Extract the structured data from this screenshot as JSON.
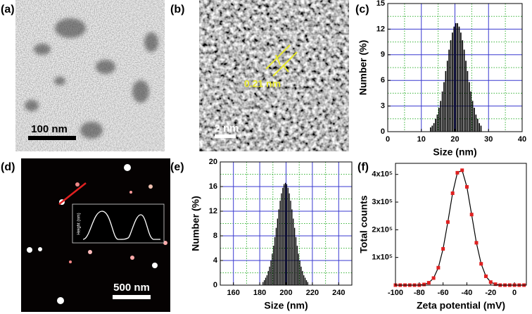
{
  "panels": [
    {
      "label": "(a)",
      "scale_bar": "100 nm"
    },
    {
      "label": "(b)",
      "scale_bar": "2 nm",
      "annotation": "0.21 nm"
    },
    {
      "label": "(c)"
    },
    {
      "label": "(d)",
      "scale_bar": "500 nm",
      "inset_ylabel": "Height (nm)"
    },
    {
      "label": "(e)"
    },
    {
      "label": "(f)"
    }
  ],
  "chart_data": [
    {
      "type": "histogram",
      "xlabel": "Size (nm)",
      "ylabel": "Number (%)",
      "color": "#000000",
      "bins": [
        12.5,
        13,
        13.5,
        14,
        14.5,
        15,
        15.5,
        16,
        16.5,
        17,
        17.5,
        18,
        18.5,
        19,
        19.5,
        20,
        20.5,
        21,
        21.5,
        22,
        22.5,
        23,
        23.5,
        24,
        24.5,
        25,
        25.5,
        26,
        26.5,
        27,
        27.5,
        28
      ],
      "values": [
        0.5,
        0.7,
        1.0,
        1.5,
        2.0,
        2.8,
        3.6,
        4.7,
        5.8,
        7.1,
        8.3,
        9.6,
        10.7,
        11.6,
        12.3,
        12.7,
        12.7,
        12.3,
        11.6,
        10.7,
        9.6,
        8.3,
        7.1,
        5.8,
        4.7,
        3.6,
        2.8,
        2.0,
        1.5,
        1.0,
        0.7
      ],
      "xlim": [
        0,
        40
      ],
      "ylim": [
        0,
        15
      ],
      "xticks": [
        0,
        10,
        20,
        30,
        40
      ],
      "yticks": [
        0,
        3,
        6,
        9,
        12,
        15
      ],
      "grid": true,
      "grid_color": "#3a3ad0",
      "minor_grid": true,
      "minor_grid_color": "#3cb43c"
    },
    {
      "type": "histogram",
      "xlabel": "Size (nm)",
      "ylabel": "Number (%)",
      "color": "#000000",
      "bins": [
        182,
        183,
        184,
        185,
        186,
        187,
        188,
        189,
        190,
        191,
        192,
        193,
        194,
        195,
        196,
        197,
        198,
        199,
        200,
        201,
        202,
        203,
        204,
        205,
        206,
        207,
        208,
        209,
        210,
        211,
        212,
        213,
        214,
        215,
        216,
        217
      ],
      "values": [
        0.5,
        0.8,
        1.2,
        1.6,
        2.3,
        3.0,
        4.0,
        5.1,
        6.4,
        7.8,
        9.3,
        10.8,
        12.3,
        13.7,
        14.9,
        15.8,
        16.4,
        16.6,
        16.4,
        15.8,
        14.9,
        13.7,
        12.3,
        10.8,
        9.3,
        7.8,
        6.4,
        5.1,
        4.0,
        3.0,
        2.3,
        1.6,
        1.2,
        0.8,
        0.5
      ],
      "xlim": [
        150,
        250
      ],
      "ylim": [
        0,
        20
      ],
      "xticks": [
        160,
        180,
        200,
        220,
        240
      ],
      "yticks": [
        0,
        4,
        8,
        12,
        16,
        20
      ],
      "grid": true,
      "grid_color": "#3a3ad0",
      "minor_grid": true,
      "minor_grid_color": "#3cb43c"
    },
    {
      "type": "line",
      "xlabel": "Zeta potential (mV)",
      "ylabel": "Total counts",
      "color": "#e02020",
      "line_color": "#000000",
      "x": [
        -100,
        -96,
        -92,
        -88,
        -84,
        -80,
        -76,
        -72,
        -68,
        -64,
        -60,
        -56,
        -52,
        -48,
        -44,
        -40,
        -36,
        -32,
        -28,
        -24,
        -20,
        -16,
        -12,
        -8,
        -4,
        0,
        4,
        8
      ],
      "values": [
        0,
        0,
        0,
        0,
        0,
        0,
        2400,
        8600,
        25500,
        63000,
        131000,
        228000,
        332000,
        406000,
        415000,
        355000,
        255000,
        153000,
        77000,
        32000,
        11000,
        3400,
        0,
        0,
        0,
        0,
        0,
        0
      ],
      "xlim": [
        -100,
        10
      ],
      "ylim": [
        0,
        440000
      ],
      "xticks": [
        -100,
        -80,
        -60,
        -40,
        -20,
        0
      ],
      "yticks": [
        {
          "value": 100000,
          "label": "1x10⁵"
        },
        {
          "value": 200000,
          "label": "2x10⁵"
        },
        {
          "value": 300000,
          "label": "3x10⁵"
        },
        {
          "value": 400000,
          "label": "4x10⁵"
        }
      ],
      "grid": false
    }
  ]
}
